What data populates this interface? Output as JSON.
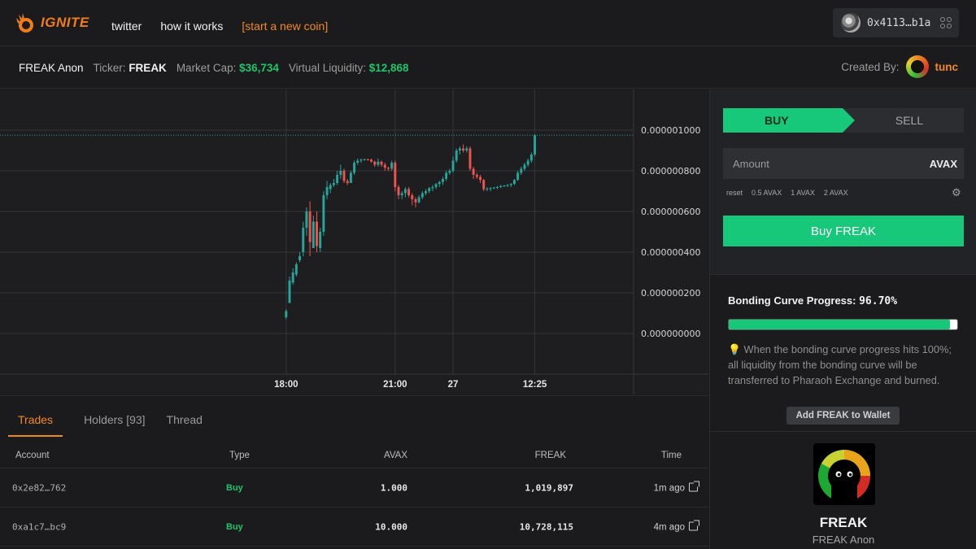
{
  "header": {
    "logo_text": "IGNITE",
    "nav": {
      "twitter": "twitter",
      "how_it_works": "how it works",
      "start_coin": "[start a new coin]"
    },
    "wallet_address": "0x4113…b1a"
  },
  "info": {
    "token_display": "FREAK Anon",
    "ticker_label": "Ticker:",
    "ticker": "FREAK",
    "market_cap_label": "Market Cap:",
    "market_cap": "$36,734",
    "liquidity_label": "Virtual Liquidity:",
    "liquidity": "$12,868",
    "created_by_label": "Created By:",
    "creator": "tunc"
  },
  "chart_data": {
    "type": "candlestick",
    "y_tick_labels": [
      "0.000001000",
      "0.000000800",
      "0.000000600",
      "0.000000400",
      "0.000000200",
      "0.000000000"
    ],
    "y_ticks": [
      1.0,
      0.8,
      0.6,
      0.4,
      0.2,
      0.0
    ],
    "y_unit_scale": "1e-6",
    "ylim": [
      -0.2,
      1.2
    ],
    "x_tick_labels": [
      "18:00",
      "21:00",
      "27",
      "12:25"
    ],
    "x_ticks": [
      0,
      32,
      49,
      73
    ],
    "xlim": [
      -84,
      102
    ],
    "last_price": 0.975,
    "colors": {
      "up": "#26a69a",
      "down": "#ef5350"
    },
    "candles": [
      {
        "o": 0.08,
        "h": 0.12,
        "l": 0.07,
        "c": 0.11
      },
      {
        "o": 0.15,
        "h": 0.28,
        "l": 0.15,
        "c": 0.26
      },
      {
        "o": 0.25,
        "h": 0.32,
        "l": 0.24,
        "c": 0.3
      },
      {
        "o": 0.29,
        "h": 0.35,
        "l": 0.28,
        "c": 0.34
      },
      {
        "o": 0.36,
        "h": 0.4,
        "l": 0.35,
        "c": 0.38
      },
      {
        "o": 0.4,
        "h": 0.55,
        "l": 0.38,
        "c": 0.52
      },
      {
        "o": 0.52,
        "h": 0.62,
        "l": 0.48,
        "c": 0.6
      },
      {
        "o": 0.6,
        "h": 0.65,
        "l": 0.38,
        "c": 0.45
      },
      {
        "o": 0.42,
        "h": 0.58,
        "l": 0.42,
        "c": 0.55
      },
      {
        "o": 0.55,
        "h": 0.6,
        "l": 0.4,
        "c": 0.43
      },
      {
        "o": 0.42,
        "h": 0.52,
        "l": 0.4,
        "c": 0.5
      },
      {
        "o": 0.5,
        "h": 0.7,
        "l": 0.48,
        "c": 0.68
      },
      {
        "o": 0.68,
        "h": 0.75,
        "l": 0.66,
        "c": 0.72
      },
      {
        "o": 0.71,
        "h": 0.74,
        "l": 0.69,
        "c": 0.73
      },
      {
        "o": 0.73,
        "h": 0.76,
        "l": 0.72,
        "c": 0.74
      },
      {
        "o": 0.74,
        "h": 0.8,
        "l": 0.73,
        "c": 0.78
      },
      {
        "o": 0.78,
        "h": 0.83,
        "l": 0.76,
        "c": 0.8
      },
      {
        "o": 0.8,
        "h": 0.81,
        "l": 0.74,
        "c": 0.75
      },
      {
        "o": 0.75,
        "h": 0.76,
        "l": 0.73,
        "c": 0.74
      },
      {
        "o": 0.74,
        "h": 0.8,
        "l": 0.74,
        "c": 0.79
      },
      {
        "o": 0.79,
        "h": 0.85,
        "l": 0.78,
        "c": 0.84
      },
      {
        "o": 0.84,
        "h": 0.86,
        "l": 0.83,
        "c": 0.85
      },
      {
        "o": 0.85,
        "h": 0.86,
        "l": 0.84,
        "c": 0.855
      },
      {
        "o": 0.855,
        "h": 0.86,
        "l": 0.85,
        "c": 0.857
      },
      {
        "o": 0.857,
        "h": 0.86,
        "l": 0.85,
        "c": 0.855
      },
      {
        "o": 0.855,
        "h": 0.86,
        "l": 0.84,
        "c": 0.845
      },
      {
        "o": 0.845,
        "h": 0.85,
        "l": 0.82,
        "c": 0.83
      },
      {
        "o": 0.83,
        "h": 0.86,
        "l": 0.82,
        "c": 0.845
      },
      {
        "o": 0.845,
        "h": 0.85,
        "l": 0.82,
        "c": 0.83
      },
      {
        "o": 0.83,
        "h": 0.84,
        "l": 0.8,
        "c": 0.815
      },
      {
        "o": 0.815,
        "h": 0.82,
        "l": 0.8,
        "c": 0.81
      },
      {
        "o": 0.81,
        "h": 0.85,
        "l": 0.8,
        "c": 0.84
      },
      {
        "o": 0.84,
        "h": 0.85,
        "l": 0.7,
        "c": 0.72
      },
      {
        "o": 0.72,
        "h": 0.73,
        "l": 0.66,
        "c": 0.68
      },
      {
        "o": 0.68,
        "h": 0.7,
        "l": 0.66,
        "c": 0.69
      },
      {
        "o": 0.69,
        "h": 0.72,
        "l": 0.67,
        "c": 0.71
      },
      {
        "o": 0.71,
        "h": 0.72,
        "l": 0.67,
        "c": 0.68
      },
      {
        "o": 0.68,
        "h": 0.69,
        "l": 0.63,
        "c": 0.66
      },
      {
        "o": 0.66,
        "h": 0.67,
        "l": 0.62,
        "c": 0.645
      },
      {
        "o": 0.645,
        "h": 0.68,
        "l": 0.64,
        "c": 0.67
      },
      {
        "o": 0.67,
        "h": 0.7,
        "l": 0.66,
        "c": 0.69
      },
      {
        "o": 0.69,
        "h": 0.71,
        "l": 0.68,
        "c": 0.7
      },
      {
        "o": 0.7,
        "h": 0.72,
        "l": 0.69,
        "c": 0.715
      },
      {
        "o": 0.715,
        "h": 0.73,
        "l": 0.7,
        "c": 0.72
      },
      {
        "o": 0.72,
        "h": 0.74,
        "l": 0.71,
        "c": 0.735
      },
      {
        "o": 0.735,
        "h": 0.75,
        "l": 0.72,
        "c": 0.745
      },
      {
        "o": 0.745,
        "h": 0.77,
        "l": 0.73,
        "c": 0.76
      },
      {
        "o": 0.76,
        "h": 0.8,
        "l": 0.75,
        "c": 0.79
      },
      {
        "o": 0.79,
        "h": 0.81,
        "l": 0.78,
        "c": 0.8
      },
      {
        "o": 0.8,
        "h": 0.87,
        "l": 0.79,
        "c": 0.85
      },
      {
        "o": 0.85,
        "h": 0.91,
        "l": 0.84,
        "c": 0.9
      },
      {
        "o": 0.9,
        "h": 0.92,
        "l": 0.88,
        "c": 0.91
      },
      {
        "o": 0.91,
        "h": 0.93,
        "l": 0.89,
        "c": 0.9
      },
      {
        "o": 0.9,
        "h": 0.92,
        "l": 0.89,
        "c": 0.91
      },
      {
        "o": 0.91,
        "h": 0.92,
        "l": 0.8,
        "c": 0.81
      },
      {
        "o": 0.81,
        "h": 0.82,
        "l": 0.76,
        "c": 0.78
      },
      {
        "o": 0.78,
        "h": 0.79,
        "l": 0.76,
        "c": 0.77
      },
      {
        "o": 0.77,
        "h": 0.78,
        "l": 0.74,
        "c": 0.755
      },
      {
        "o": 0.755,
        "h": 0.76,
        "l": 0.7,
        "c": 0.71
      },
      {
        "o": 0.71,
        "h": 0.72,
        "l": 0.7,
        "c": 0.712
      },
      {
        "o": 0.712,
        "h": 0.72,
        "l": 0.7,
        "c": 0.715
      },
      {
        "o": 0.715,
        "h": 0.72,
        "l": 0.71,
        "c": 0.718
      },
      {
        "o": 0.718,
        "h": 0.725,
        "l": 0.71,
        "c": 0.72
      },
      {
        "o": 0.72,
        "h": 0.73,
        "l": 0.715,
        "c": 0.725
      },
      {
        "o": 0.725,
        "h": 0.73,
        "l": 0.72,
        "c": 0.728
      },
      {
        "o": 0.728,
        "h": 0.735,
        "l": 0.72,
        "c": 0.73
      },
      {
        "o": 0.73,
        "h": 0.74,
        "l": 0.72,
        "c": 0.735
      },
      {
        "o": 0.735,
        "h": 0.76,
        "l": 0.73,
        "c": 0.755
      },
      {
        "o": 0.755,
        "h": 0.8,
        "l": 0.75,
        "c": 0.79
      },
      {
        "o": 0.79,
        "h": 0.82,
        "l": 0.78,
        "c": 0.81
      },
      {
        "o": 0.81,
        "h": 0.84,
        "l": 0.8,
        "c": 0.83
      },
      {
        "o": 0.83,
        "h": 0.86,
        "l": 0.82,
        "c": 0.85
      },
      {
        "o": 0.85,
        "h": 0.89,
        "l": 0.84,
        "c": 0.88
      },
      {
        "o": 0.88,
        "h": 0.98,
        "l": 0.87,
        "c": 0.975
      }
    ]
  },
  "trades": {
    "tabs": [
      "Trades",
      "Holders [93]",
      "Thread"
    ],
    "columns": {
      "account": "Account",
      "type": "Type",
      "avax": "AVAX",
      "token": "FREAK",
      "time": "Time"
    },
    "rows": [
      {
        "account": "0x2e82…762",
        "type": "Buy",
        "avax": "1.000",
        "token": "1,019,897",
        "time": "1m ago"
      },
      {
        "account": "0xa1c7…bc9",
        "type": "Buy",
        "avax": "10.000",
        "token": "10,728,115",
        "time": "4m ago"
      }
    ]
  },
  "trade_panel": {
    "buy_tab": "BUY",
    "sell_tab": "SELL",
    "amount_placeholder": "Amount",
    "amount_unit": "AVAX",
    "quick_amounts": [
      "reset",
      "0.5 AVAX",
      "1 AVAX",
      "2 AVAX"
    ],
    "buy_button": "Buy FREAK"
  },
  "bonding": {
    "title": "Bonding Curve Progress:",
    "percent_text": "96.70%",
    "progress_fraction": 0.967,
    "note": "When the bonding curve progress hits 100%; all liquidity from the bonding curve will be transferred to Pharaoh Exchange and burned.",
    "add_wallet": "Add FREAK to Wallet"
  },
  "token_card": {
    "name": "FREAK",
    "subtitle": "FREAK Anon"
  },
  "colors": {
    "accent": "#f08a24",
    "green": "#17c77a",
    "up": "#26a69a",
    "down": "#ef5350"
  }
}
